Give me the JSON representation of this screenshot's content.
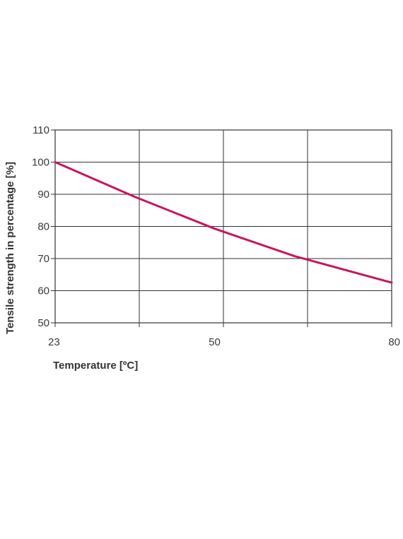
{
  "chart_data": {
    "type": "line",
    "xlabel": "Temperature [ºC]",
    "ylabel": "Tensile strength in percentage [%]",
    "xlim": [
      23,
      80
    ],
    "ylim": [
      50,
      110
    ],
    "x_ticks": [
      23,
      50,
      80
    ],
    "y_ticks": [
      50,
      60,
      70,
      80,
      90,
      100,
      110
    ],
    "grid": true,
    "series": [
      {
        "color": "#c8155e",
        "x": [
          23,
          36.5,
          50,
          63.5,
          80
        ],
        "y": [
          100,
          89.2,
          79.3,
          70.8,
          62.5
        ]
      }
    ]
  }
}
